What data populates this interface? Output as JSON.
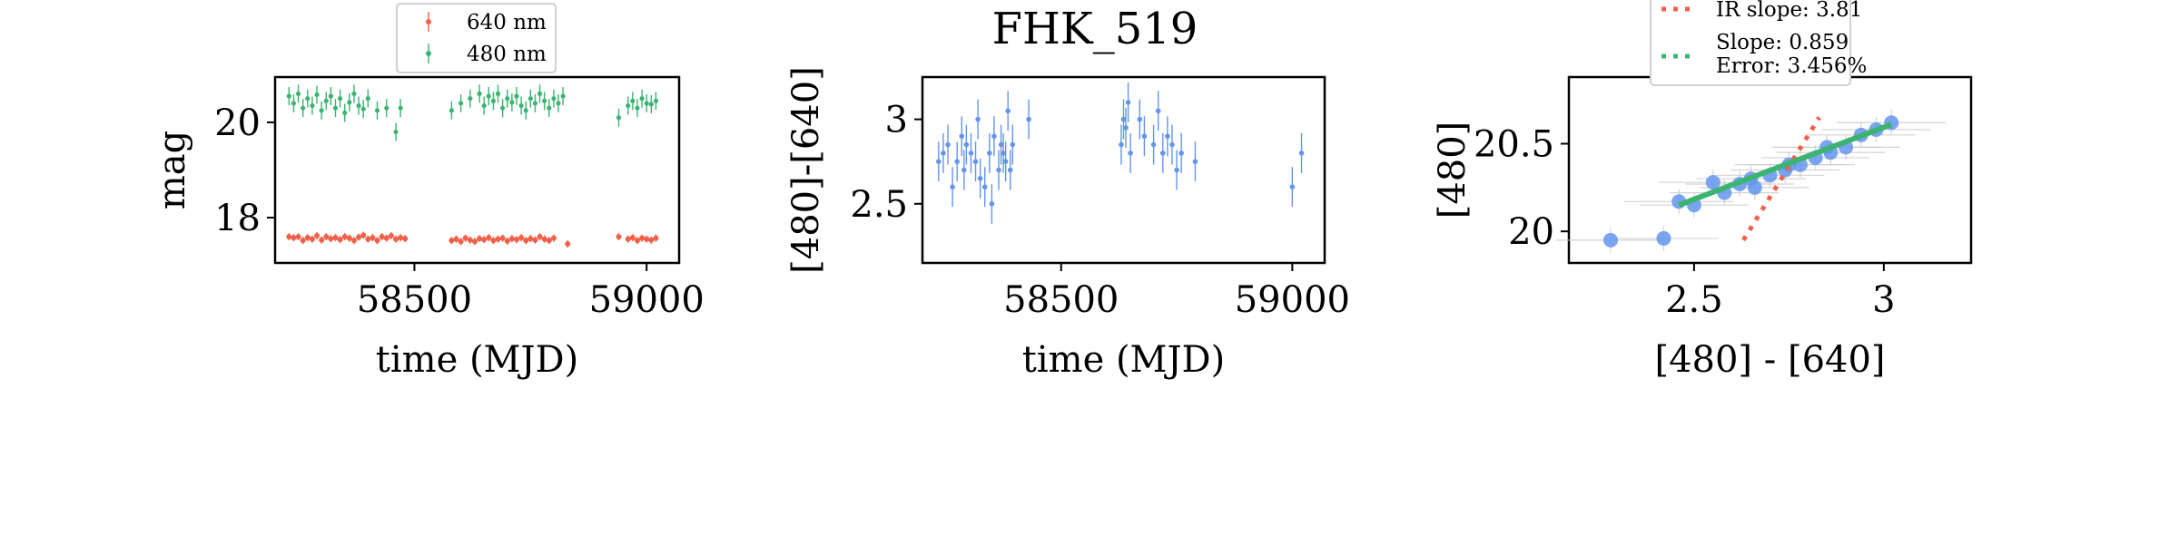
{
  "chart_data": [
    {
      "type": "scatter",
      "title": "",
      "xlabel": "time (MJD)",
      "ylabel": "mag",
      "xlim": [
        58200,
        59070
      ],
      "ylim": [
        20.95,
        17.05
      ],
      "y_inverted": true,
      "xticks": [
        58500,
        59000
      ],
      "yticks": [
        18,
        20
      ],
      "legend": {
        "position": "above-top-center",
        "entries": [
          "640 nm",
          "480 nm"
        ]
      },
      "series": [
        {
          "name": "640 nm",
          "color": "#f0604a",
          "x": [
            58230,
            58240,
            58250,
            58260,
            58270,
            58280,
            58290,
            58300,
            58310,
            58320,
            58330,
            58340,
            58350,
            58360,
            58370,
            58380,
            58390,
            58400,
            58410,
            58420,
            58430,
            58440,
            58450,
            58460,
            58470,
            58480,
            58580,
            58590,
            58600,
            58610,
            58620,
            58630,
            58640,
            58650,
            58660,
            58670,
            58680,
            58690,
            58700,
            58710,
            58720,
            58730,
            58740,
            58750,
            58760,
            58770,
            58780,
            58790,
            58800,
            58830,
            58940,
            58960,
            58970,
            58980,
            58990,
            59000,
            59010,
            59020
          ],
          "y": [
            17.6,
            17.58,
            17.6,
            17.52,
            17.58,
            17.55,
            17.62,
            17.53,
            17.6,
            17.56,
            17.58,
            17.54,
            17.6,
            17.57,
            17.52,
            17.59,
            17.63,
            17.55,
            17.58,
            17.52,
            17.6,
            17.57,
            17.62,
            17.55,
            17.58,
            17.56,
            17.52,
            17.55,
            17.5,
            17.57,
            17.53,
            17.5,
            17.56,
            17.54,
            17.58,
            17.52,
            17.55,
            17.57,
            17.51,
            17.56,
            17.54,
            17.58,
            17.52,
            17.56,
            17.53,
            17.6,
            17.55,
            17.52,
            17.57,
            17.45,
            17.6,
            17.55,
            17.58,
            17.52,
            17.57,
            17.55,
            17.53,
            17.57
          ]
        },
        {
          "name": "480 nm",
          "color": "#3cb371",
          "x": [
            58230,
            58240,
            58250,
            58260,
            58270,
            58280,
            58290,
            58300,
            58310,
            58320,
            58330,
            58340,
            58350,
            58360,
            58370,
            58380,
            58390,
            58400,
            58420,
            58440,
            58460,
            58470,
            58580,
            58600,
            58620,
            58640,
            58650,
            58660,
            58670,
            58680,
            58690,
            58700,
            58710,
            58720,
            58730,
            58740,
            58750,
            58760,
            58770,
            58780,
            58790,
            58800,
            58810,
            58820,
            58940,
            58960,
            58970,
            58980,
            58990,
            59000,
            59010,
            59020
          ],
          "y": [
            20.55,
            20.4,
            20.6,
            20.3,
            20.5,
            20.35,
            20.58,
            20.25,
            20.45,
            20.55,
            20.3,
            20.5,
            20.2,
            20.42,
            20.6,
            20.35,
            20.28,
            20.5,
            20.25,
            20.3,
            19.8,
            20.3,
            20.25,
            20.4,
            20.5,
            20.6,
            20.35,
            20.55,
            20.45,
            20.6,
            20.3,
            20.5,
            20.42,
            20.55,
            20.35,
            20.25,
            20.5,
            20.4,
            20.6,
            20.45,
            20.3,
            20.5,
            20.4,
            20.55,
            20.1,
            20.35,
            20.45,
            20.3,
            20.5,
            20.4,
            20.38,
            20.45
          ]
        }
      ]
    },
    {
      "type": "scatter",
      "title": "FHK_519",
      "xlabel": "time (MJD)",
      "ylabel": "[480]-[640]",
      "xlim": [
        58200,
        59070
      ],
      "ylim": [
        3.25,
        2.15
      ],
      "y_inverted": true,
      "xticks": [
        58500,
        59000
      ],
      "yticks": [
        2.5,
        3.0
      ],
      "series": [
        {
          "name": "",
          "color": "#6495ed",
          "x": [
            58235,
            58245,
            58255,
            58265,
            58275,
            58285,
            58290,
            58295,
            58305,
            58315,
            58320,
            58325,
            58335,
            58345,
            58350,
            58355,
            58365,
            58370,
            58375,
            58380,
            58385,
            58390,
            58395,
            58430,
            58630,
            58635,
            58640,
            58645,
            58650,
            58670,
            58680,
            58700,
            58710,
            58720,
            58730,
            58740,
            58750,
            58760,
            58790,
            59000,
            59020
          ],
          "y": [
            2.75,
            2.8,
            2.85,
            2.6,
            2.75,
            2.9,
            2.7,
            2.85,
            2.8,
            2.75,
            3.0,
            2.65,
            2.6,
            2.8,
            2.5,
            2.9,
            2.7,
            2.85,
            2.8,
            2.75,
            3.05,
            2.7,
            2.85,
            3.0,
            2.85,
            3.0,
            2.95,
            3.1,
            2.8,
            3.0,
            2.9,
            2.85,
            3.05,
            2.8,
            2.9,
            2.85,
            2.7,
            2.8,
            2.75,
            2.6,
            2.8
          ]
        }
      ]
    },
    {
      "type": "scatter",
      "title": "",
      "xlabel": "[480] - [640]",
      "ylabel": "[480]",
      "xlim": [
        2.17,
        3.23
      ],
      "ylim": [
        20.88,
        19.82
      ],
      "y_inverted": true,
      "xticks": [
        2.5,
        3.0
      ],
      "yticks": [
        20.0,
        20.5
      ],
      "legend": {
        "position": "above-top-right",
        "entries": [
          "IR slope: 3.81",
          "Slope: 0.859\nError: 3.456%"
        ]
      },
      "points": {
        "color": "#6495ed",
        "x": [
          2.28,
          2.42,
          2.46,
          2.5,
          2.58,
          2.62,
          2.66,
          2.7,
          2.74,
          2.78,
          2.82,
          2.86,
          2.9,
          2.94,
          2.98,
          3.02,
          2.55,
          2.65,
          2.75,
          2.85
        ],
        "y": [
          19.95,
          19.96,
          20.17,
          20.15,
          20.22,
          20.27,
          20.25,
          20.32,
          20.35,
          20.38,
          20.42,
          20.45,
          20.48,
          20.55,
          20.58,
          20.62,
          20.28,
          20.3,
          20.38,
          20.48
        ]
      },
      "fit_lines": [
        {
          "name": "IR slope: 3.81",
          "color": "#f0604a",
          "style": "dotted",
          "x": [
            2.63,
            2.83
          ],
          "y": [
            19.95,
            20.65
          ]
        },
        {
          "name": "Slope: 0.859",
          "color": "#3cb371",
          "style": "dotted",
          "x": [
            2.46,
            3.02
          ],
          "y": [
            20.15,
            20.61
          ]
        }
      ]
    }
  ]
}
